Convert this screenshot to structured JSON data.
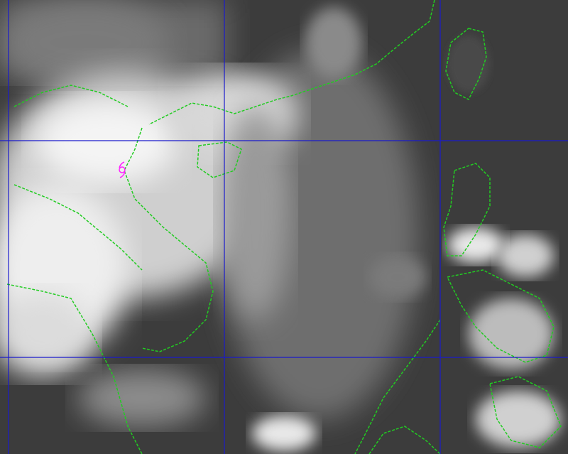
{
  "image_type": "infrared satellite imagery",
  "colors": {
    "background": "#3c3c3c",
    "cloud": "#f2f2f2",
    "coastline": "#22cc22",
    "grid": "#1a1acc",
    "storm_symbol": "#ff22ff"
  },
  "grid": {
    "vertical_lines": 3,
    "horizontal_lines": 2
  },
  "icons": {
    "storm": "typhoon-symbol"
  }
}
